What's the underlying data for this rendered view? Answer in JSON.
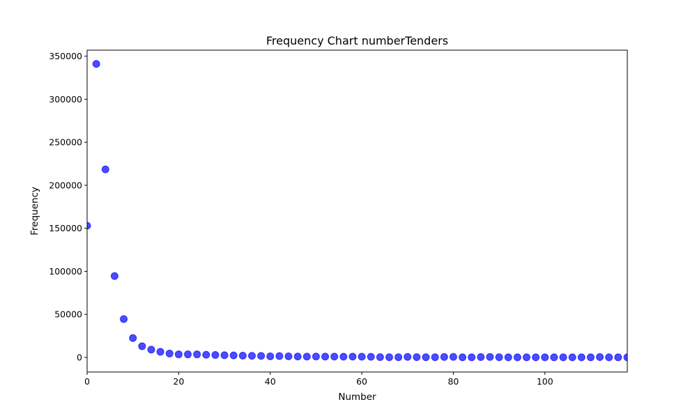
{
  "chart_data": {
    "type": "scatter",
    "title": "Frequency Chart numberTenders",
    "xlabel": "Number",
    "ylabel": "Frequency",
    "xlim": [
      0,
      118
    ],
    "ylim": [
      -17000,
      357000
    ],
    "xticks": [
      0,
      20,
      40,
      60,
      80,
      100
    ],
    "yticks": [
      0,
      50000,
      100000,
      150000,
      200000,
      250000,
      300000,
      350000
    ],
    "grid": false,
    "marker_color": "#0000ff",
    "series": [
      {
        "x": [
          0,
          2,
          4,
          6,
          8,
          10,
          12,
          14,
          16,
          18,
          20,
          22,
          24,
          26,
          28,
          30,
          32,
          34,
          36,
          38,
          40,
          42,
          44,
          46,
          48,
          50,
          52,
          54,
          56,
          58,
          60,
          62,
          64,
          66,
          68,
          70,
          72,
          74,
          76,
          78,
          80,
          82,
          84,
          86,
          88,
          90,
          92,
          94,
          96,
          98,
          100,
          102,
          104,
          106,
          108,
          110,
          112,
          114,
          116,
          118
        ],
        "y": [
          153000,
          341000,
          218500,
          94500,
          44500,
          22500,
          13000,
          9000,
          6500,
          4500,
          3500,
          3500,
          3500,
          3000,
          2800,
          2500,
          2300,
          2000,
          1800,
          1700,
          1200,
          1500,
          1200,
          1000,
          900,
          1000,
          900,
          900,
          800,
          900,
          800,
          700,
          300,
          200,
          200,
          600,
          300,
          200,
          200,
          500,
          600,
          100,
          100,
          400,
          500,
          200,
          100,
          100,
          100,
          100,
          100,
          100,
          100,
          100,
          100,
          100,
          400,
          100,
          100,
          100
        ]
      }
    ]
  }
}
